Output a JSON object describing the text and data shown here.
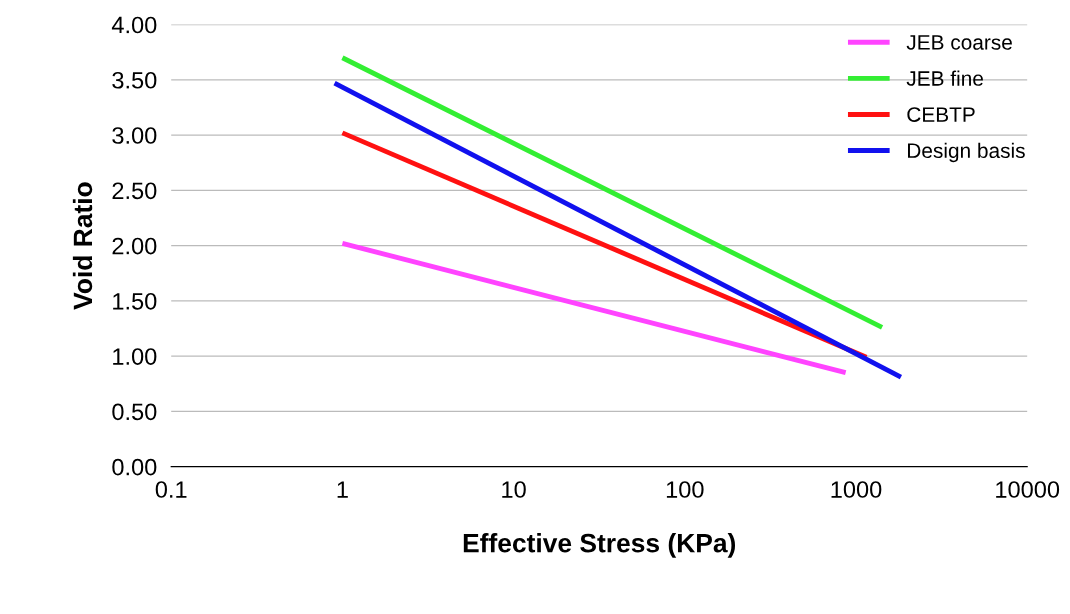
{
  "chart_data": {
    "type": "line",
    "xlabel": "Effective Stress (KPa)",
    "ylabel": "Void Ratio",
    "log": "x",
    "xlim": [
      0.1,
      10000
    ],
    "xticks": [
      0.1,
      1,
      10,
      100,
      1000,
      10000
    ],
    "ylim": [
      0,
      4
    ],
    "yticks": [
      {
        "value": 0,
        "label": "0.00"
      },
      {
        "value": 0.5,
        "label": "0.50"
      },
      {
        "value": 1,
        "label": "1.00"
      },
      {
        "value": 1.5,
        "label": "1.50"
      },
      {
        "value": 2,
        "label": "2.00"
      },
      {
        "value": 2.5,
        "label": "2.50"
      },
      {
        "value": 3,
        "label": "3.00"
      },
      {
        "value": 3.5,
        "label": "3.50"
      },
      {
        "value": 4,
        "label": "4.00"
      }
    ],
    "grid": "y",
    "legend": "top right",
    "marker": "none",
    "line_style": "solid",
    "series": [
      {
        "name": "JEB coarse",
        "color": "#ff44ff",
        "x": [
          1,
          870
        ],
        "values": [
          2.02,
          0.85
        ]
      },
      {
        "name": "JEB fine",
        "color": "#33ee33",
        "x": [
          1,
          1420
        ],
        "values": [
          3.7,
          1.26
        ]
      },
      {
        "name": "CEBTP",
        "color": "#ff1111",
        "x": [
          1,
          1150
        ],
        "values": [
          3.02,
          0.99
        ]
      },
      {
        "name": "Design basis",
        "color": "#1111ee",
        "x": [
          0.9,
          1830
        ],
        "values": [
          3.47,
          0.81
        ]
      }
    ]
  }
}
